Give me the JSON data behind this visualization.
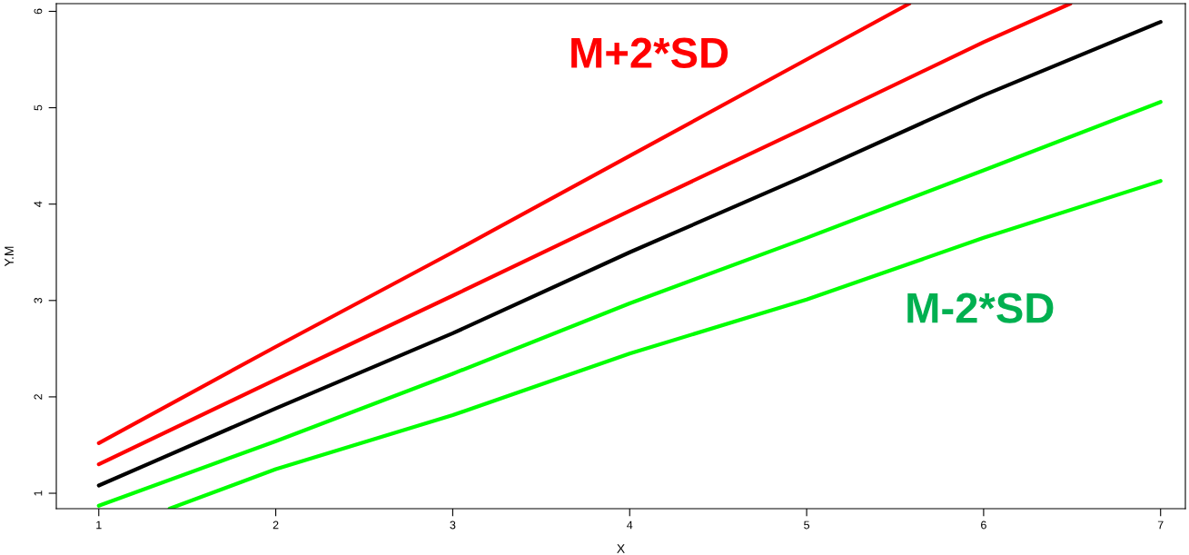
{
  "chart_data": {
    "type": "line",
    "xlabel": "X",
    "ylabel": "Y.M",
    "xlim": [
      0.76,
      7.14
    ],
    "ylim": [
      0.84,
      6.08
    ],
    "xticks": [
      1,
      2,
      3,
      4,
      5,
      6,
      7
    ],
    "yticks": [
      1,
      2,
      3,
      4,
      5,
      6
    ],
    "grid": false,
    "legend": false,
    "line_style": "solid",
    "marker": "none",
    "series": [
      {
        "color": "#ff0000",
        "x": [
          1,
          2,
          3,
          4,
          5,
          5.58
        ],
        "values": [
          1.52,
          2.52,
          3.5,
          4.5,
          5.5,
          6.08
        ]
      },
      {
        "color": "#ff0000",
        "x": [
          1,
          2,
          3,
          4,
          5,
          6,
          6.49
        ],
        "values": [
          1.3,
          2.18,
          3.05,
          3.93,
          4.8,
          5.68,
          6.08
        ]
      },
      {
        "color": "#000000",
        "x": [
          1,
          2,
          3,
          4,
          5,
          6,
          7
        ],
        "values": [
          1.08,
          1.88,
          2.66,
          3.5,
          4.3,
          5.13,
          5.89
        ]
      },
      {
        "color": "#00ff00",
        "x": [
          1,
          2,
          3,
          4,
          5,
          6,
          7
        ],
        "values": [
          0.87,
          1.54,
          2.24,
          2.97,
          3.65,
          4.35,
          5.06
        ]
      },
      {
        "color": "#00ff00",
        "x": [
          1.4,
          2,
          3,
          4,
          5,
          6,
          7
        ],
        "values": [
          0.84,
          1.25,
          1.81,
          2.45,
          3.01,
          3.65,
          4.24
        ]
      }
    ],
    "annotations": [
      "M+2*SD",
      "M-2*SD"
    ]
  }
}
